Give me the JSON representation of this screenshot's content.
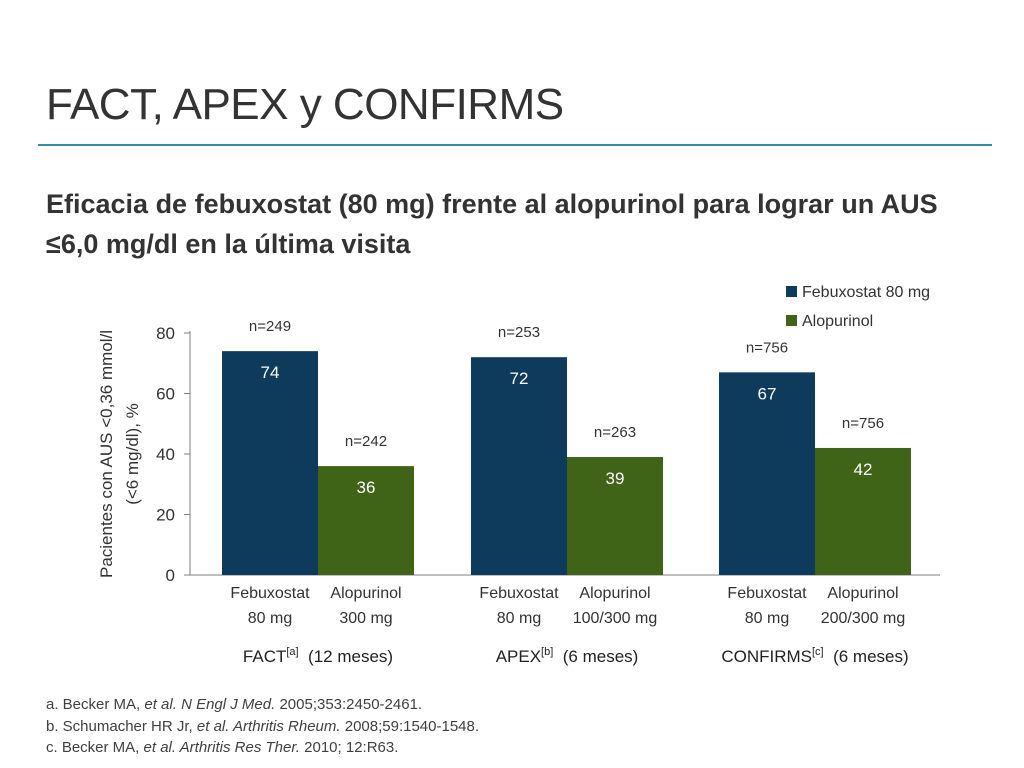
{
  "slide": {
    "title": "FACT, APEX y CONFIRMS",
    "subtitle": "Eficacia de febuxostat (80 mg) frente al alopurinol para lograr un AUS ≤6,0 mg/dl en la última visita"
  },
  "chart_data": {
    "type": "bar",
    "title": "",
    "ylabel_lines": [
      "Pacientes con AUS <0,36 mmol/l",
      "(<6 mg/dl), %"
    ],
    "ylim": [
      0,
      80
    ],
    "yticks": [
      0,
      20,
      40,
      60,
      80
    ],
    "grid": false,
    "legend_position": "top-right",
    "series": [
      {
        "name": "Febuxostat 80 mg",
        "color": "#0e3a5b"
      },
      {
        "name": "Alopurinol",
        "color": "#3f6418"
      }
    ],
    "groups": [
      {
        "label": "FACT",
        "ref": "[a]",
        "duration": "(12 meses)",
        "bars": [
          {
            "series": 0,
            "value": 74,
            "n_label": "n=249",
            "category_lines": [
              "Febuxostat",
              "80 mg"
            ]
          },
          {
            "series": 1,
            "value": 36,
            "n_label": "n=242",
            "category_lines": [
              "Alopurinol",
              "300 mg"
            ]
          }
        ]
      },
      {
        "label": "APEX",
        "ref": "[b]",
        "duration": "(6 meses)",
        "bars": [
          {
            "series": 0,
            "value": 72,
            "n_label": "n=253",
            "category_lines": [
              "Febuxostat",
              "80 mg"
            ]
          },
          {
            "series": 1,
            "value": 39,
            "n_label": "n=263",
            "category_lines": [
              "Alopurinol",
              "100/300 mg"
            ]
          }
        ]
      },
      {
        "label": "CONFIRMS",
        "ref": "[c]",
        "duration": "(6 meses)",
        "bars": [
          {
            "series": 0,
            "value": 67,
            "n_label": "n=756",
            "category_lines": [
              "Febuxostat",
              "80 mg"
            ]
          },
          {
            "series": 1,
            "value": 42,
            "n_label": "n=756",
            "category_lines": [
              "Alopurinol",
              "200/300 mg"
            ]
          }
        ]
      }
    ]
  },
  "references": [
    {
      "prefix": "a. Becker MA, ",
      "italic1": "et al. ",
      "italic2": "N Engl J Med.",
      "suffix": " 2005;353:2450-2461."
    },
    {
      "prefix": "b. Schumacher HR Jr, ",
      "italic1": "et al. ",
      "italic2": "Arthritis Rheum.",
      "suffix": " 2008;59:1540-1548."
    },
    {
      "prefix": "c. Becker MA, ",
      "italic1": "et al. ",
      "italic2": "Arthritis Res Ther.",
      "suffix": " 2010; 12:R63."
    }
  ]
}
